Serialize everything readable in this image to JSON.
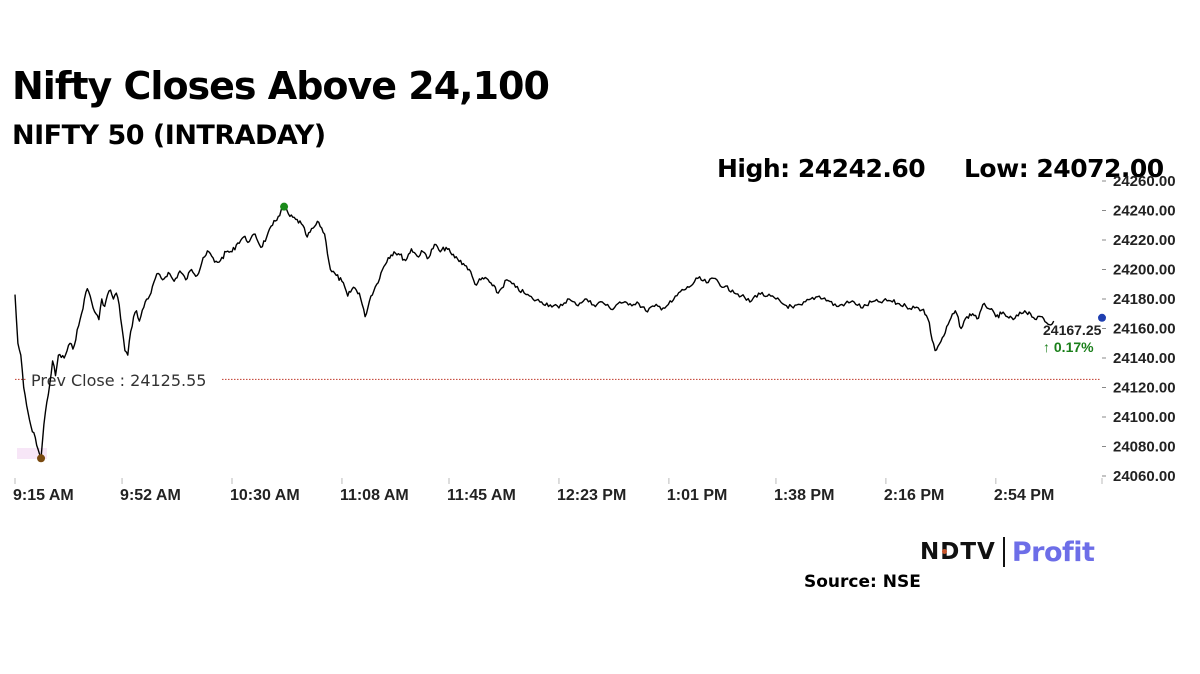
{
  "title": "Nifty Closes Above 24,100",
  "subtitle": "NIFTY 50 (INTRADAY)",
  "high_label": "High: 24242.60",
  "low_label": "Low: 24072.00",
  "source": "Source: NSE",
  "logo": {
    "brand": "NDTV",
    "product": "Profit"
  },
  "chart_data": {
    "type": "line",
    "title": "NIFTY 50 (INTRADAY)",
    "xlabel": "",
    "ylabel": "",
    "ylim": [
      24060,
      24260
    ],
    "y_ticks": [
      "24060.00",
      "24080.00",
      "24100.00",
      "24120.00",
      "24140.00",
      "24160.00",
      "24180.00",
      "24200.00",
      "24220.00",
      "24240.00",
      "24260.00"
    ],
    "x_range": [
      "9:15 AM",
      "3:30 PM"
    ],
    "x_ticks": [
      "9:15 AM",
      "9:52 AM",
      "10:30 AM",
      "11:08 AM",
      "11:45 AM",
      "12:23 PM",
      "1:01 PM",
      "1:38 PM",
      "2:16 PM",
      "2:54 PM"
    ],
    "grid": false,
    "prev_close": 24125.55,
    "prev_close_label": "Prev Close : 24125.55",
    "high": {
      "time": "10:48 AM",
      "value": 24242.6
    },
    "low": {
      "time": "9:24 AM",
      "value": 24072.0
    },
    "last": {
      "time": "3:30 PM",
      "value": 24167.25,
      "label": "24167.25",
      "change_label": "↑ 0.17%"
    },
    "colors": {
      "line": "#000000",
      "prev_close": "#c0392b",
      "high_marker": "#1a8a1a",
      "low_marker": "#7a4a10",
      "last_marker": "#1f3fb0"
    },
    "series": [
      {
        "values": [
          [
            "9:15 AM",
            24183
          ],
          [
            "9:16 AM",
            24150
          ],
          [
            "9:17 AM",
            24142
          ],
          [
            "9:18 AM",
            24120
          ],
          [
            "9:19 AM",
            24108
          ],
          [
            "9:20 AM",
            24098
          ],
          [
            "9:21 AM",
            24090
          ],
          [
            "9:22 AM",
            24086
          ],
          [
            "9:23 AM",
            24078
          ],
          [
            "9:24 AM",
            24072
          ],
          [
            "9:25 AM",
            24095
          ],
          [
            "9:26 AM",
            24110
          ],
          [
            "9:27 AM",
            24122
          ],
          [
            "9:28 AM",
            24138
          ],
          [
            "9:29 AM",
            24128
          ],
          [
            "9:30 AM",
            24142
          ],
          [
            "9:32 AM",
            24140
          ],
          [
            "9:34 AM",
            24150
          ],
          [
            "9:35 AM",
            24146
          ],
          [
            "9:37 AM",
            24162
          ],
          [
            "9:38 AM",
            24170
          ],
          [
            "9:39 AM",
            24180
          ],
          [
            "9:40 AM",
            24187
          ],
          [
            "9:41 AM",
            24182
          ],
          [
            "9:42 AM",
            24174
          ],
          [
            "9:43 AM",
            24170
          ],
          [
            "9:44 AM",
            24166
          ],
          [
            "9:45 AM",
            24180
          ],
          [
            "9:46 AM",
            24175
          ],
          [
            "9:47 AM",
            24183
          ],
          [
            "9:48 AM",
            24186
          ],
          [
            "9:49 AM",
            24180
          ],
          [
            "9:50 AM",
            24184
          ],
          [
            "9:51 AM",
            24176
          ],
          [
            "9:52 AM",
            24160
          ],
          [
            "9:53 AM",
            24145
          ],
          [
            "9:54 AM",
            24142
          ],
          [
            "9:55 AM",
            24158
          ],
          [
            "9:56 AM",
            24168
          ],
          [
            "9:57 AM",
            24172
          ],
          [
            "9:58 AM",
            24165
          ],
          [
            "10:00 AM",
            24178
          ],
          [
            "10:02 AM",
            24184
          ],
          [
            "10:04 AM",
            24197
          ],
          [
            "10:06 AM",
            24193
          ],
          [
            "10:08 AM",
            24198
          ],
          [
            "10:10 AM",
            24192
          ],
          [
            "10:12 AM",
            24199
          ],
          [
            "10:14 AM",
            24193
          ],
          [
            "10:16 AM",
            24200
          ],
          [
            "10:18 AM",
            24196
          ],
          [
            "10:20 AM",
            24208
          ],
          [
            "10:22 AM",
            24212
          ],
          [
            "10:24 AM",
            24205
          ],
          [
            "10:26 AM",
            24206
          ],
          [
            "10:28 AM",
            24212
          ],
          [
            "10:30 AM",
            24212
          ],
          [
            "10:32 AM",
            24218
          ],
          [
            "10:34 AM",
            24222
          ],
          [
            "10:36 AM",
            24219
          ],
          [
            "10:38 AM",
            24224
          ],
          [
            "10:40 AM",
            24215
          ],
          [
            "10:42 AM",
            24222
          ],
          [
            "10:44 AM",
            24230
          ],
          [
            "10:46 AM",
            24236
          ],
          [
            "10:48 AM",
            24242.6
          ],
          [
            "10:50 AM",
            24236
          ],
          [
            "10:52 AM",
            24234
          ],
          [
            "10:54 AM",
            24231
          ],
          [
            "10:56 AM",
            24222
          ],
          [
            "10:58 AM",
            24228
          ],
          [
            "11:00 AM",
            24232
          ],
          [
            "11:02 AM",
            24224
          ],
          [
            "11:04 AM",
            24200
          ],
          [
            "11:06 AM",
            24196
          ],
          [
            "11:08 AM",
            24192
          ],
          [
            "11:10 AM",
            24182
          ],
          [
            "11:12 AM",
            24188
          ],
          [
            "11:14 AM",
            24184
          ],
          [
            "11:16 AM",
            24168
          ],
          [
            "11:18 AM",
            24182
          ],
          [
            "11:20 AM",
            24190
          ],
          [
            "11:22 AM",
            24200
          ],
          [
            "11:24 AM",
            24208
          ],
          [
            "11:26 AM",
            24212
          ],
          [
            "11:28 AM",
            24210
          ],
          [
            "11:30 AM",
            24206
          ],
          [
            "11:32 AM",
            24214
          ],
          [
            "11:34 AM",
            24209
          ],
          [
            "11:36 AM",
            24212
          ],
          [
            "11:38 AM",
            24208
          ],
          [
            "11:40 AM",
            24217
          ],
          [
            "11:42 AM",
            24212
          ],
          [
            "11:44 AM",
            24215
          ],
          [
            "11:46 AM",
            24210
          ],
          [
            "11:48 AM",
            24207
          ],
          [
            "11:50 AM",
            24204
          ],
          [
            "11:52 AM",
            24200
          ],
          [
            "11:54 AM",
            24190
          ],
          [
            "11:56 AM",
            24193
          ],
          [
            "11:58 AM",
            24194
          ],
          [
            "12:00 PM",
            24189
          ],
          [
            "12:02 PM",
            24184
          ],
          [
            "12:05 PM",
            24193
          ],
          [
            "12:08 PM",
            24188
          ],
          [
            "12:11 PM",
            24184
          ],
          [
            "12:14 PM",
            24180
          ],
          [
            "12:17 PM",
            24178
          ],
          [
            "12:20 PM",
            24176
          ],
          [
            "12:23 PM",
            24174
          ],
          [
            "12:26 PM",
            24180
          ],
          [
            "12:29 PM",
            24176
          ],
          [
            "12:32 PM",
            24180
          ],
          [
            "12:35 PM",
            24176
          ],
          [
            "12:38 PM",
            24178
          ],
          [
            "12:41 PM",
            24173
          ],
          [
            "12:44 PM",
            24178
          ],
          [
            "12:47 PM",
            24176
          ],
          [
            "12:50 PM",
            24178
          ],
          [
            "12:53 PM",
            24172
          ],
          [
            "12:56 PM",
            24175
          ],
          [
            "12:59 PM",
            24174
          ],
          [
            "1:02 PM",
            24178
          ],
          [
            "1:05 PM",
            24185
          ],
          [
            "1:08 PM",
            24188
          ],
          [
            "1:11 PM",
            24194
          ],
          [
            "1:14 PM",
            24191
          ],
          [
            "1:17 PM",
            24194
          ],
          [
            "1:20 PM",
            24188
          ],
          [
            "1:23 PM",
            24186
          ],
          [
            "1:26 PM",
            24182
          ],
          [
            "1:29 PM",
            24178
          ],
          [
            "1:32 PM",
            24184
          ],
          [
            "1:35 PM",
            24182
          ],
          [
            "1:38 PM",
            24180
          ],
          [
            "1:41 PM",
            24176
          ],
          [
            "1:44 PM",
            24174
          ],
          [
            "1:47 PM",
            24176
          ],
          [
            "1:50 PM",
            24180
          ],
          [
            "1:53 PM",
            24182
          ],
          [
            "1:56 PM",
            24179
          ],
          [
            "1:59 PM",
            24175
          ],
          [
            "2:02 PM",
            24177
          ],
          [
            "2:05 PM",
            24178
          ],
          [
            "2:08 PM",
            24174
          ],
          [
            "2:11 PM",
            24178
          ],
          [
            "2:14 PM",
            24178
          ],
          [
            "2:17 PM",
            24179
          ],
          [
            "2:20 PM",
            24177
          ],
          [
            "2:23 PM",
            24175
          ],
          [
            "2:26 PM",
            24174
          ],
          [
            "2:29 PM",
            24173
          ],
          [
            "2:31 PM",
            24164
          ],
          [
            "2:32 PM",
            24152
          ],
          [
            "2:33 PM",
            24145
          ],
          [
            "2:34 PM",
            24148
          ],
          [
            "2:36 PM",
            24155
          ],
          [
            "2:38 PM",
            24165
          ],
          [
            "2:40 PM",
            24172
          ],
          [
            "2:42 PM",
            24160
          ],
          [
            "2:44 PM",
            24168
          ],
          [
            "2:46 PM",
            24170
          ],
          [
            "2:48 PM",
            24167
          ],
          [
            "2:50 PM",
            24177
          ],
          [
            "2:52 PM",
            24173
          ],
          [
            "2:54 PM",
            24168
          ],
          [
            "2:56 PM",
            24170
          ],
          [
            "2:58 PM",
            24168
          ],
          [
            "3:00 PM",
            24166
          ],
          [
            "3:04 PM",
            24172
          ],
          [
            "3:06 PM",
            24170
          ],
          [
            "3:08 PM",
            24166
          ],
          [
            "3:10 PM",
            24168
          ],
          [
            "3:12 PM",
            24163
          ],
          [
            "3:14 PM",
            24165
          ]
        ]
      }
    ]
  }
}
